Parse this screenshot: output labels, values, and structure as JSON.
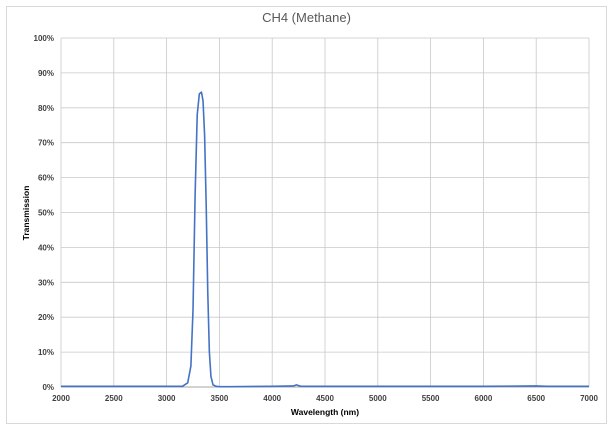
{
  "chart_data": {
    "type": "line",
    "title": "CH4 (Methane)",
    "xlabel": "Wavelength (nm)",
    "ylabel": "Transmission",
    "xlim": [
      2000,
      7000
    ],
    "ylim": [
      0,
      1
    ],
    "x_ticks": [
      "2000",
      "2500",
      "3000",
      "3500",
      "4000",
      "4500",
      "5000",
      "5500",
      "6000",
      "6500",
      "7000"
    ],
    "y_ticks": [
      "0%",
      "10%",
      "20%",
      "30%",
      "40%",
      "50%",
      "60%",
      "70%",
      "80%",
      "90%",
      "100%"
    ],
    "grid": true,
    "series_color": "#4472c4",
    "series": [
      {
        "x": [
          2000,
          3000,
          3150,
          3200,
          3230,
          3250,
          3270,
          3290,
          3310,
          3330,
          3345,
          3360,
          3375,
          3390,
          3405,
          3420,
          3440,
          3470,
          3500,
          3600,
          4000,
          4200,
          4230,
          4250,
          4270,
          4300,
          5000,
          6000,
          6500,
          6600,
          7000
        ],
        "y": [
          0.002,
          0.002,
          0.002,
          0.012,
          0.06,
          0.22,
          0.55,
          0.78,
          0.84,
          0.845,
          0.82,
          0.72,
          0.52,
          0.27,
          0.1,
          0.03,
          0.006,
          0.002,
          0.001,
          0.001,
          0.002,
          0.003,
          0.006,
          0.004,
          0.002,
          0.002,
          0.002,
          0.002,
          0.003,
          0.002,
          0.002
        ]
      }
    ]
  }
}
